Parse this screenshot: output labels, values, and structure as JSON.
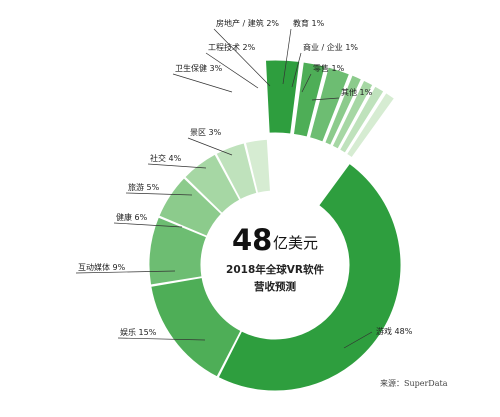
{
  "chart_data": {
    "type": "pie",
    "variant": "donut-exploded",
    "total": {
      "value": "48",
      "unit": "亿美元"
    },
    "center_lines": [
      "2018年全球VR软件",
      "营收预测"
    ],
    "slices": [
      {
        "name": "游戏",
        "value": 48,
        "label": "游戏 48%",
        "color": "#2e9e3e"
      },
      {
        "name": "娱乐",
        "value": 15,
        "label": "娱乐 15%",
        "color": "#4eae57"
      },
      {
        "name": "互动媒体",
        "value": 9,
        "label": "互动媒体 9%",
        "color": "#6dbd72"
      },
      {
        "name": "健康",
        "value": 6,
        "label": "健康 6%",
        "color": "#8ccb8c"
      },
      {
        "name": "旅游",
        "value": 5,
        "label": "旅游 5%",
        "color": "#a6d7a4"
      },
      {
        "name": "社交",
        "value": 4,
        "label": "社交 4%",
        "color": "#bfe2bc"
      },
      {
        "name": "景区",
        "value": 3,
        "label": "景区 3%",
        "color": "#d6ecd2"
      },
      {
        "name": "卫生保健",
        "value": 3,
        "label": "卫生保健 3%",
        "color": "#2e9e3e"
      },
      {
        "name": "工程技术",
        "value": 2,
        "label": "工程技术 2%",
        "color": "#4eae57"
      },
      {
        "name": "房地产 / 建筑",
        "value": 2,
        "label": "房地产 / 建筑 2%",
        "color": "#6dbd72"
      },
      {
        "name": "教育",
        "value": 1,
        "label": "教育 1%",
        "color": "#8ccb8c"
      },
      {
        "name": "商业 / 企业",
        "value": 1,
        "label": "商业 / 企业 1%",
        "color": "#a6d7a4"
      },
      {
        "name": "零售",
        "value": 1,
        "label": "零售 1%",
        "color": "#bfe2bc"
      },
      {
        "name": "其他",
        "value": 1,
        "label": "其他 1%",
        "color": "#d6ecd2"
      }
    ],
    "exploded_slices": [
      "卫生保健",
      "工程技术",
      "房地产 / 建筑",
      "教育",
      "商业 / 企业",
      "零售",
      "其他"
    ]
  },
  "source_text": "来源：SuperData"
}
